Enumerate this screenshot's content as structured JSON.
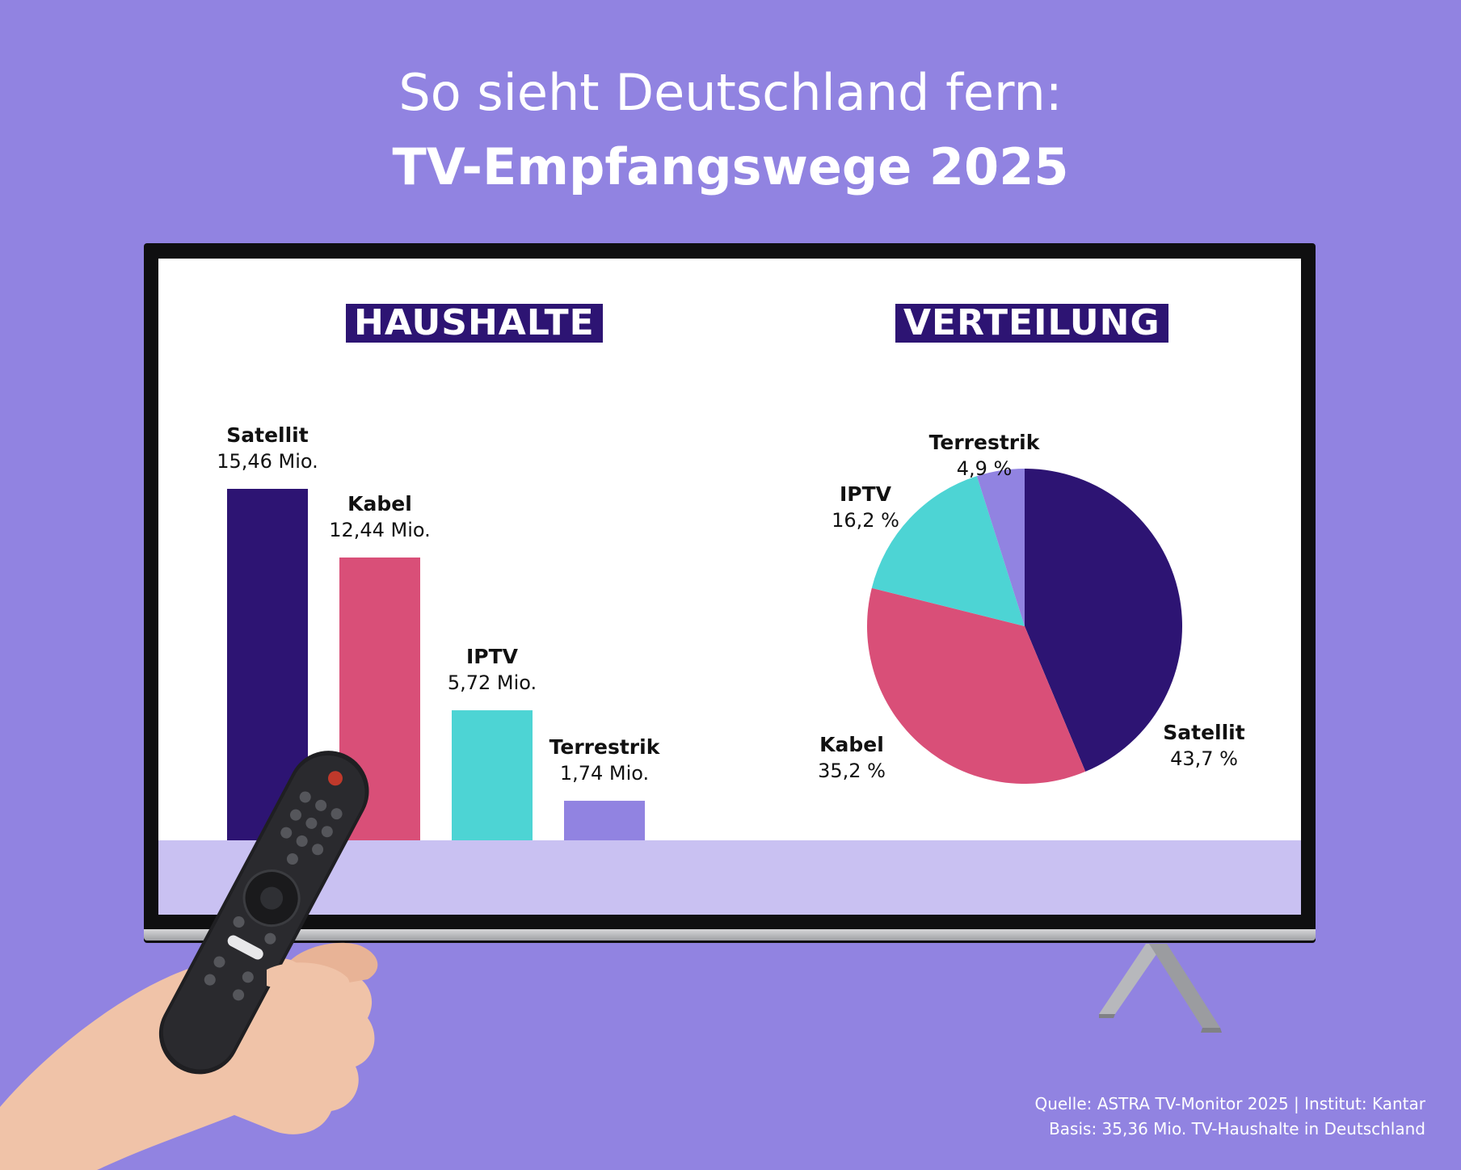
{
  "headline": {
    "line1": "So sieht Deutschland fern:",
    "line2": "TV-Empfangswege 2025"
  },
  "colors": {
    "background": "#9183e1",
    "badge": "#2d1473",
    "satellit": "#2d1473",
    "kabel": "#d94f78",
    "iptv": "#4dd4d4",
    "terrestrik": "#9183e1",
    "floor": "#c9c1f2"
  },
  "chart_data": [
    {
      "type": "bar",
      "title": "HAUSHALTE",
      "categories": [
        "Satellit",
        "Kabel",
        "IPTV",
        "Terrestrik"
      ],
      "values": [
        15.46,
        12.44,
        5.72,
        1.74
      ],
      "value_labels": [
        "15,46 Mio.",
        "12,44 Mio.",
        "5,72 Mio.",
        "1,74 Mio."
      ],
      "ylim": [
        0,
        15.46
      ],
      "grid": false
    },
    {
      "type": "pie",
      "title": "VERTEILUNG",
      "categories": [
        "Satellit",
        "Kabel",
        "IPTV",
        "Terrestrik"
      ],
      "values": [
        43.7,
        35.2,
        16.2,
        4.9
      ],
      "value_labels": [
        "43,7 %",
        "35,2 %",
        "16,2 %",
        "4,9 %"
      ]
    }
  ],
  "source": {
    "line1": "Quelle: ASTRA TV-Monitor 2025 | Institut: Kantar",
    "line2": "Basis: 35,36 Mio. TV-Haushalte in Deutschland"
  },
  "icons": {
    "remote": "tv-remote-icon",
    "hand": "hand-icon",
    "stand": "tv-stand-icon"
  }
}
